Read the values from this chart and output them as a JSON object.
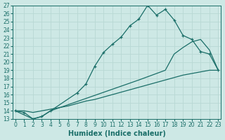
{
  "xlabel": "Humidex (Indice chaleur)",
  "xlim": [
    -0.3,
    23.3
  ],
  "ylim": [
    13,
    27
  ],
  "xtick_vals": [
    0,
    1,
    2,
    3,
    4,
    5,
    6,
    7,
    8,
    9,
    10,
    11,
    12,
    13,
    14,
    15,
    16,
    17,
    18,
    19,
    20,
    21,
    22,
    23
  ],
  "ytick_vals": [
    13,
    14,
    15,
    16,
    17,
    18,
    19,
    20,
    21,
    22,
    23,
    24,
    25,
    26,
    27
  ],
  "bg_color": "#cde8e5",
  "line_color": "#1a6e68",
  "line1_x": [
    0,
    1,
    2,
    3,
    4,
    7,
    8,
    9,
    10,
    11,
    12,
    13,
    14,
    15,
    16,
    17,
    18,
    19,
    20,
    21,
    22,
    23
  ],
  "line1_y": [
    14.0,
    13.8,
    13.0,
    13.3,
    14.0,
    16.2,
    17.3,
    19.5,
    21.2,
    22.2,
    23.1,
    24.5,
    25.3,
    27.0,
    25.8,
    26.5,
    25.2,
    23.3,
    22.8,
    21.3,
    21.0,
    19.0
  ],
  "line2_x": [
    0,
    2,
    3,
    4,
    14,
    15,
    16,
    17,
    18,
    19,
    20,
    21,
    22,
    23
  ],
  "line2_y": [
    14.0,
    13.0,
    13.3,
    14.0,
    17.8,
    18.2,
    18.6,
    19.0,
    21.0,
    21.8,
    22.5,
    22.8,
    21.5,
    19.0
  ],
  "line3_x": [
    0,
    1,
    2,
    3,
    4,
    5,
    6,
    7,
    8,
    9,
    10,
    11,
    12,
    13,
    14,
    15,
    16,
    17,
    18,
    19,
    20,
    21,
    22,
    23
  ],
  "line3_y": [
    14.0,
    14.0,
    13.8,
    14.0,
    14.2,
    14.4,
    14.6,
    14.9,
    15.2,
    15.4,
    15.7,
    16.0,
    16.3,
    16.6,
    16.9,
    17.2,
    17.5,
    17.8,
    18.1,
    18.4,
    18.6,
    18.8,
    19.0,
    19.0
  ],
  "grid_color": "#b8d8d4",
  "tick_fontsize": 5.5,
  "label_fontsize": 7
}
